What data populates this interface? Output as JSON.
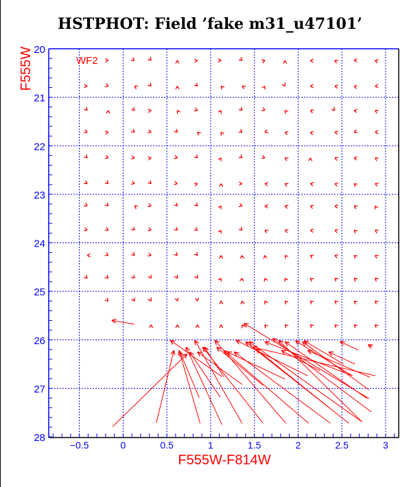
{
  "chart_data": {
    "type": "scatter",
    "subtype": "vector-field",
    "title": "HSTPHOT: Field ’fake m31_u47101’",
    "xlabel": "F555W-F814W",
    "ylabel": "F555W",
    "annotation": "WF2",
    "xlim": [
      -0.85,
      3.15
    ],
    "ylim": [
      28,
      20
    ],
    "x_ticks": [
      "-0.5",
      "0",
      "0.5",
      "1",
      "1.5",
      "2",
      "2.5",
      "3"
    ],
    "x_tick_values": [
      -0.5,
      0,
      0.5,
      1,
      1.5,
      2,
      2.5,
      3
    ],
    "y_ticks": [
      "20",
      "21",
      "22",
      "23",
      "24",
      "25",
      "26",
      "27",
      "28"
    ],
    "y_tick_values": [
      20,
      21,
      22,
      23,
      24,
      25,
      26,
      27,
      28
    ],
    "grid": true,
    "colors": {
      "vectors": "#ff0000",
      "grid": "#0000ff",
      "ticks": "#0000ff",
      "labels": "#ff0000"
    },
    "small_vectors": {
      "note_units": "head position in data units, direction in degrees",
      "cols": [
        -0.41,
        -0.17,
        0.13,
        0.32,
        0.62,
        0.85,
        1.12,
        1.36,
        1.62,
        1.85,
        2.14,
        2.42,
        2.64,
        2.88
      ],
      "rows": [
        {
          "y": 20.24,
          "angles": [
            null,
            0,
            -30,
            -45,
            90,
            10,
            0,
            -40,
            20,
            90,
            170,
            150,
            180,
            160
          ]
        },
        {
          "y": 20.77,
          "angles": [
            0,
            -20,
            150,
            -45,
            90,
            -45,
            130,
            150,
            60,
            -60,
            180,
            170,
            160,
            180
          ]
        },
        {
          "y": 21.27,
          "angles": [
            -45,
            90,
            -45,
            10,
            120,
            -20,
            60,
            -45,
            -30,
            130,
            160,
            -40,
            170,
            150
          ]
        },
        {
          "y": 21.72,
          "angles": [
            -20,
            10,
            -40,
            -20,
            -45,
            140,
            120,
            -30,
            200,
            160,
            160,
            170,
            200,
            180
          ]
        },
        {
          "y": 22.25,
          "angles": [
            -45,
            -20,
            -10,
            10,
            -20,
            -45,
            60,
            -40,
            -20,
            150,
            90,
            160,
            170,
            150
          ]
        },
        {
          "y": 22.78,
          "angles": [
            -30,
            -40,
            -20,
            -45,
            -10,
            20,
            90,
            0,
            170,
            150,
            170,
            160,
            140,
            160
          ]
        },
        {
          "y": 23.24,
          "angles": [
            -30,
            -45,
            150,
            -20,
            -45,
            -45,
            60,
            -20,
            170,
            160,
            160,
            170,
            150,
            120
          ]
        },
        {
          "y": 23.74,
          "angles": [
            -20,
            -30,
            -45,
            -20,
            -40,
            -30,
            60,
            -45,
            150,
            160,
            170,
            160,
            140,
            150
          ]
        },
        {
          "y": 24.26,
          "angles": [
            180,
            -30,
            -45,
            -20,
            -45,
            -50,
            90,
            90,
            100,
            130,
            150,
            160,
            140,
            150
          ]
        },
        {
          "y": 24.73,
          "angles": [
            -40,
            -40,
            -45,
            -60,
            -60,
            -60,
            60,
            80,
            110,
            120,
            140,
            140,
            140,
            140
          ]
        },
        {
          "y": 25.2,
          "angles": [
            null,
            -40,
            -60,
            -60,
            -80,
            -80,
            90,
            100,
            120,
            130,
            140,
            140,
            140,
            140
          ]
        },
        {
          "y": 25.69,
          "angles": [
            null,
            null,
            null,
            90,
            90,
            90,
            90,
            120,
            130,
            140,
            140,
            140,
            140,
            140
          ]
        }
      ]
    },
    "long_vectors": {
      "note_units": "[x_head, y_head, x_tail, y_tail] in data units",
      "items": [
        [
          0.73,
          26.29,
          -0.12,
          27.79
        ],
        [
          0.58,
          26.22,
          0.38,
          27.71
        ],
        [
          0.54,
          26.01,
          1.13,
          26.76
        ],
        [
          0.64,
          26.22,
          0.88,
          27.72
        ],
        [
          0.65,
          26.25,
          0.87,
          27.19
        ],
        [
          0.72,
          26.15,
          1.13,
          27.75
        ],
        [
          0.76,
          26.25,
          1.11,
          27.18
        ],
        [
          0.82,
          26.01,
          1.36,
          27.72
        ],
        [
          0.85,
          26.25,
          1.36,
          26.92
        ],
        [
          0.91,
          26.15,
          1.6,
          27.72
        ],
        [
          0.93,
          26.15,
          1.15,
          26.76
        ],
        [
          1.05,
          26.01,
          1.86,
          27.72
        ],
        [
          1.07,
          26.15,
          1.6,
          26.94
        ],
        [
          1.15,
          26.22,
          2.12,
          27.72
        ],
        [
          1.19,
          26.25,
          1.85,
          26.81
        ],
        [
          1.27,
          26.25,
          2.37,
          27.72
        ],
        [
          1.29,
          26.01,
          2.11,
          26.74
        ],
        [
          1.4,
          26.04,
          2.58,
          27.72
        ],
        [
          1.38,
          25.66,
          2.81,
          27.21
        ],
        [
          1.44,
          26.04,
          2.73,
          27.69
        ],
        [
          1.48,
          26.15,
          2.88,
          26.74
        ],
        [
          1.52,
          26.19,
          2.37,
          27.42
        ],
        [
          1.62,
          26.04,
          2.62,
          26.74
        ],
        [
          1.71,
          25.97,
          2.84,
          27.49
        ],
        [
          1.78,
          26.01,
          2.73,
          27.69
        ],
        [
          1.85,
          26.04,
          2.79,
          27.21
        ],
        [
          1.97,
          26.02,
          2.62,
          26.74
        ],
        [
          2.05,
          26.04,
          2.81,
          27.03
        ],
        [
          2.07,
          26.02,
          2.52,
          26.5
        ],
        [
          2.11,
          26.22,
          2.82,
          26.77
        ],
        [
          2.35,
          26.25,
          2.65,
          26.5
        ],
        [
          2.48,
          26.04,
          2.69,
          26.21
        ],
        [
          2.8,
          26.1,
          2.85,
          26.15
        ],
        [
          1.81,
          26.22,
          2.25,
          26.64
        ],
        [
          -0.13,
          25.6,
          0.13,
          25.68
        ]
      ]
    }
  }
}
